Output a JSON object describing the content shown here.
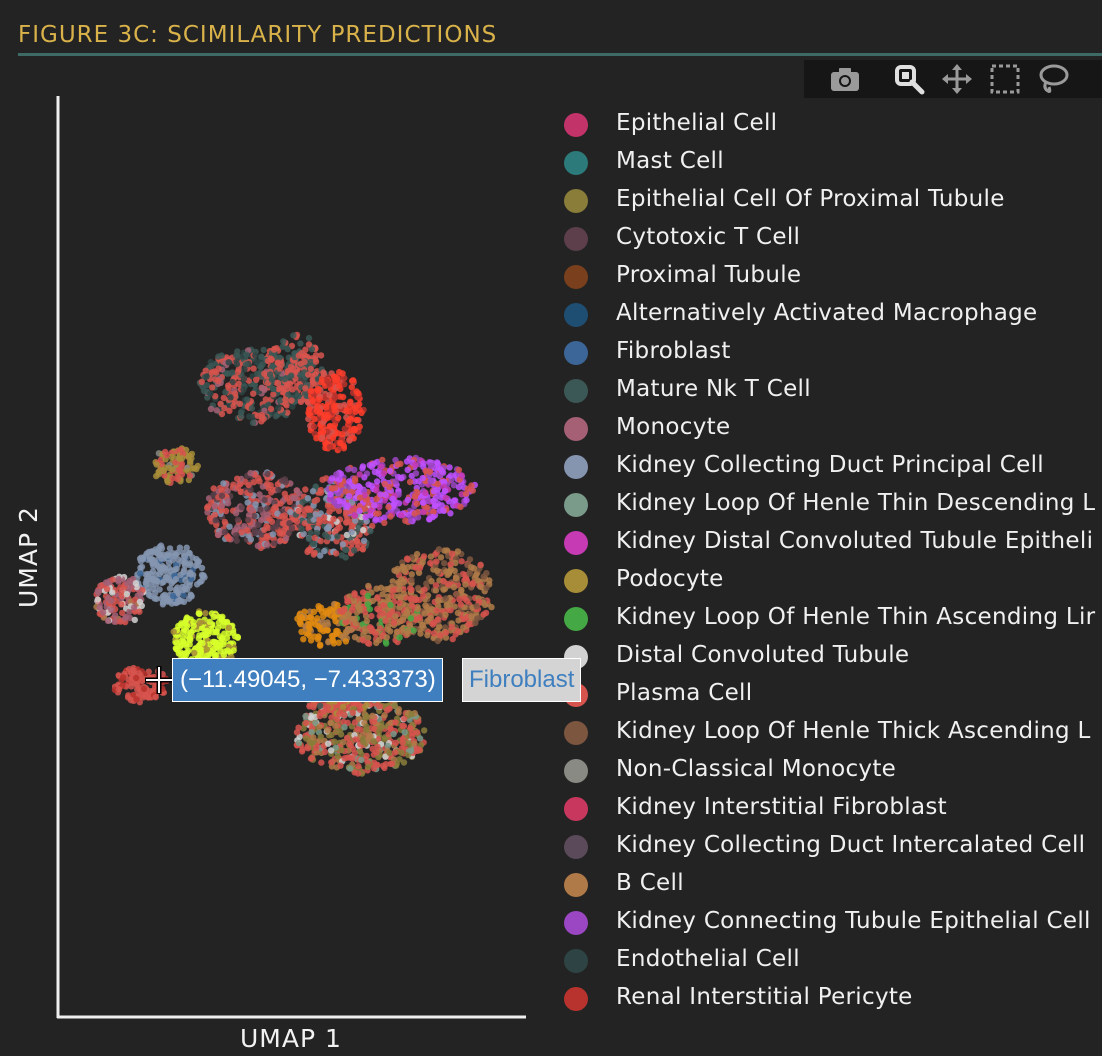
{
  "figure": {
    "title": "FIGURE 3C: SCIMILARITY PREDICTIONS"
  },
  "modebar": {
    "buttons": [
      {
        "icon": "camera-icon"
      },
      {
        "icon": "zoom-icon"
      },
      {
        "icon": "pan-icon"
      },
      {
        "icon": "box-select-icon"
      },
      {
        "icon": "lasso-select-icon"
      }
    ]
  },
  "hover": {
    "coords": "(−11.49045, −7.433373)",
    "label": "Fibroblast",
    "icon": "crosshair-icon"
  },
  "chart_data": {
    "type": "scatter",
    "xlabel": "UMAP 1",
    "ylabel": "UMAP 2",
    "grid": false,
    "legend_position": "right",
    "series": [
      {
        "name": "Epithelial Cell",
        "color": "#c2336a"
      },
      {
        "name": "Mast Cell",
        "color": "#2d7a7a"
      },
      {
        "name": "Epithelial Cell Of Proximal Tubule",
        "color": "#8a7d3a"
      },
      {
        "name": "Cytotoxic T Cell",
        "color": "#5c3f4a"
      },
      {
        "name": "Proximal Tubule",
        "color": "#7a3f1c"
      },
      {
        "name": "Alternatively Activated Macrophage",
        "color": "#1f4e73"
      },
      {
        "name": "Fibroblast",
        "color": "#3b6697"
      },
      {
        "name": "Mature Nk T Cell",
        "color": "#3b5856"
      },
      {
        "name": "Monocyte",
        "color": "#a56075"
      },
      {
        "name": "Kidney Collecting Duct Principal Cell",
        "color": "#8595b0"
      },
      {
        "name": "Kidney Loop Of Henle Thin Descending L",
        "color": "#7a9a8a"
      },
      {
        "name": "Kidney Distal Convoluted Tubule Epitheli",
        "color": "#c63ab3"
      },
      {
        "name": "Podocyte",
        "color": "#a88d38"
      },
      {
        "name": "Kidney Loop Of Henle Thin Ascending Lir",
        "color": "#44a844"
      },
      {
        "name": "Distal Convoluted Tubule",
        "color": "#d2d2d2"
      },
      {
        "name": "Plasma Cell",
        "color": "#d7534e"
      },
      {
        "name": "Kidney Loop Of Henle Thick Ascending L",
        "color": "#7d5640"
      },
      {
        "name": "Non-Classical Monocyte",
        "color": "#8a8a84"
      },
      {
        "name": "Kidney Interstitial Fibroblast",
        "color": "#c8385e"
      },
      {
        "name": "Kidney Collecting Duct Intercalated Cell",
        "color": "#5a4a5a"
      },
      {
        "name": "B Cell",
        "color": "#b07a48"
      },
      {
        "name": "Kidney Connecting Tubule Epithelial Cell",
        "color": "#9b46c2"
      },
      {
        "name": "Endothelial Cell",
        "color": "#2e4444"
      },
      {
        "name": "Renal Interstitial Pericyte",
        "color": "#b8332d"
      }
    ]
  }
}
